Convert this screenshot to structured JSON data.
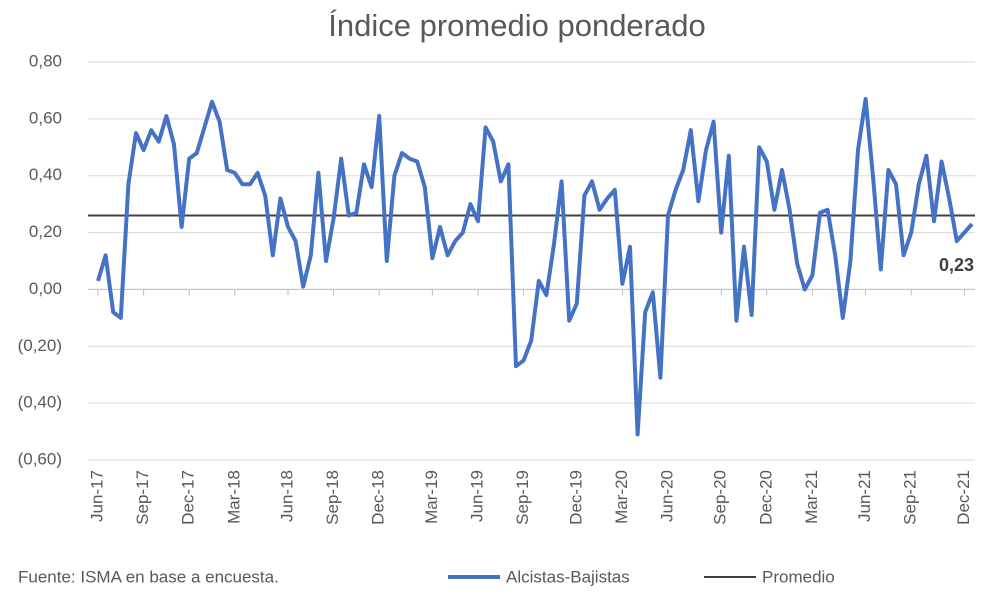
{
  "chart_data": {
    "type": "line",
    "title": "Índice promedio ponderado",
    "footnote": "Fuente: ISMA en base a encuesta.",
    "categories": [
      "Jun-17",
      null,
      null,
      null,
      null,
      null,
      "Sep-17",
      null,
      null,
      null,
      null,
      null,
      "Dec-17",
      null,
      null,
      null,
      null,
      null,
      "Mar-18",
      null,
      null,
      null,
      null,
      null,
      null,
      "Jun-18",
      null,
      null,
      null,
      null,
      null,
      "Sep-18",
      null,
      null,
      null,
      null,
      null,
      "Dec-18",
      null,
      null,
      null,
      null,
      null,
      null,
      "Mar-19",
      null,
      null,
      null,
      null,
      null,
      "Jun-19",
      null,
      null,
      null,
      null,
      null,
      "Sep-19",
      null,
      null,
      null,
      null,
      null,
      null,
      "Dec-19",
      null,
      null,
      null,
      null,
      null,
      "Mar-20",
      null,
      null,
      null,
      null,
      null,
      "Jun-20",
      null,
      null,
      null,
      null,
      null,
      null,
      "Sep-20",
      null,
      null,
      null,
      null,
      null,
      "Dec-20",
      null,
      null,
      null,
      null,
      null,
      "Mar-21",
      null,
      null,
      null,
      null,
      null,
      null,
      "Jun-21",
      null,
      null,
      null,
      null,
      null,
      "Sep-21",
      null,
      null,
      null,
      null,
      null,
      null,
      "Dec-21",
      null
    ],
    "series": [
      {
        "name": "Alcistas-Bajistas",
        "color": "#4472c4",
        "values": [
          0.03,
          0.12,
          -0.08,
          -0.1,
          0.37,
          0.55,
          0.49,
          0.56,
          0.52,
          0.61,
          0.51,
          0.22,
          0.46,
          0.48,
          0.57,
          0.66,
          0.59,
          0.42,
          0.41,
          0.37,
          0.37,
          0.41,
          0.33,
          0.12,
          0.32,
          0.22,
          0.17,
          0.01,
          0.12,
          0.41,
          0.1,
          0.25,
          0.46,
          0.26,
          0.27,
          0.44,
          0.36,
          0.61,
          0.1,
          0.4,
          0.48,
          0.46,
          0.45,
          0.36,
          0.11,
          0.22,
          0.12,
          0.17,
          0.2,
          0.3,
          0.24,
          0.57,
          0.52,
          0.38,
          0.44,
          -0.27,
          -0.25,
          -0.18,
          0.03,
          -0.02,
          0.16,
          0.38,
          -0.11,
          -0.05,
          0.33,
          0.38,
          0.28,
          0.32,
          0.35,
          0.02,
          0.15,
          -0.51,
          -0.08,
          -0.01,
          -0.31,
          0.26,
          0.35,
          0.42,
          0.56,
          0.31,
          0.49,
          0.59,
          0.2,
          0.47,
          -0.11,
          0.15,
          -0.09,
          0.5,
          0.45,
          0.28,
          0.42,
          0.28,
          0.09,
          0.0,
          0.05,
          0.27,
          0.28,
          0.12,
          -0.1,
          0.1,
          0.49,
          0.67,
          0.39,
          0.07,
          0.42,
          0.37,
          0.12,
          0.2,
          0.37,
          0.47,
          0.24,
          0.45,
          0.32,
          0.17,
          0.2,
          0.23
        ]
      }
    ],
    "reference_line": {
      "name": "Promedio",
      "value": 0.26,
      "color": "#404040"
    },
    "annotations": [
      {
        "text": "0,23",
        "index": 115
      }
    ],
    "ylim": [
      -0.6,
      0.8
    ],
    "yticks": [
      {
        "value": -0.6,
        "label": "(0,60)"
      },
      {
        "value": -0.4,
        "label": "(0,40)"
      },
      {
        "value": -0.2,
        "label": "(0,20)"
      },
      {
        "value": 0,
        "label": "0,00"
      },
      {
        "value": 0.2,
        "label": "0,20"
      },
      {
        "value": 0.4,
        "label": "0,40"
      },
      {
        "value": 0.6,
        "label": "0,60"
      },
      {
        "value": 0.8,
        "label": "0,80"
      }
    ],
    "grid": true
  }
}
